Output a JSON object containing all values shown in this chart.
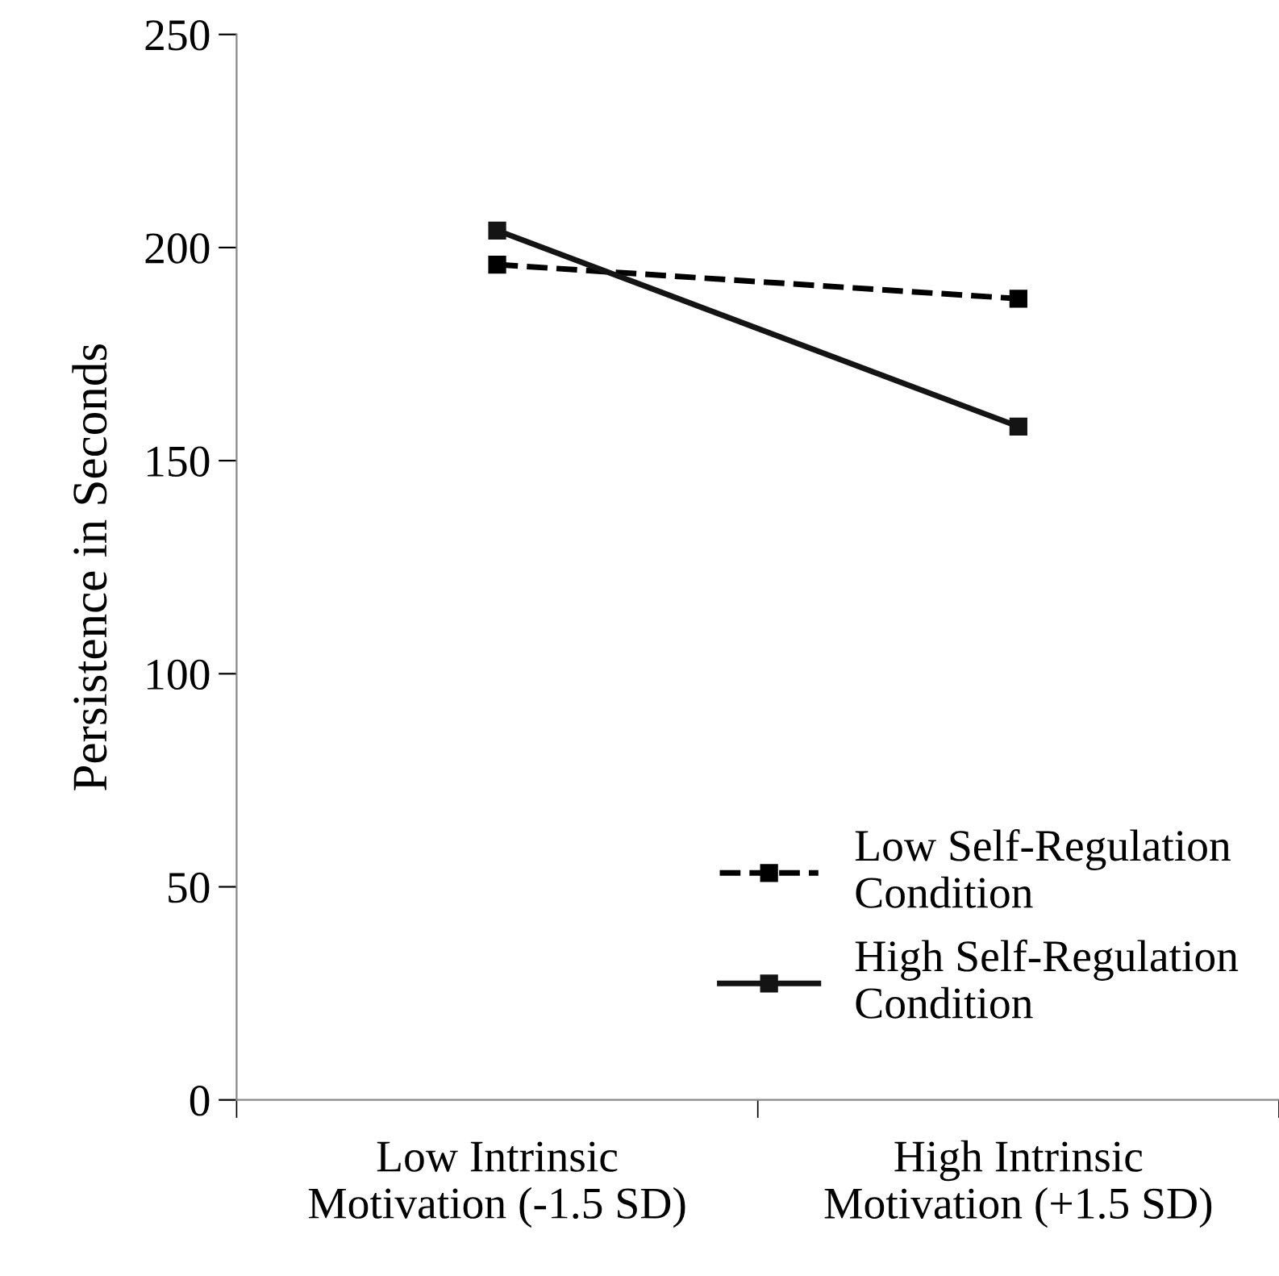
{
  "chart_data": {
    "type": "line",
    "ylabel": "Persistence in Seconds",
    "categories": [
      "Low Intrinsic\nMotivation (-1.5 SD)",
      "High Intrinsic\nMotivation (+1.5 SD)"
    ],
    "series": [
      {
        "name": "Low Self-Regulation\nCondition",
        "color": "#000000",
        "values": [
          196,
          188
        ],
        "line_style": "dashed",
        "marker": "square"
      },
      {
        "name": "High Self-Regulation\nCondition",
        "color": "#141414",
        "values": [
          204,
          158
        ],
        "line_style": "solid",
        "marker": "square"
      }
    ],
    "ylim": [
      0,
      250
    ],
    "yticks": [
      0,
      50,
      100,
      150,
      200,
      250
    ],
    "grid": false,
    "legend": "bottom right"
  }
}
